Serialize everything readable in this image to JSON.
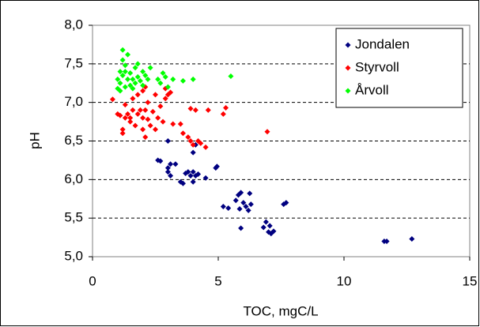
{
  "chart_data": {
    "type": "scatter",
    "xlabel": "TOC, mgC/L",
    "ylabel": "pH",
    "xlim": [
      0,
      15
    ],
    "ylim": [
      5,
      8
    ],
    "xticks": [
      0,
      5,
      10,
      15
    ],
    "yticks": [
      {
        "value": 5,
        "label": "5,0"
      },
      {
        "value": 5.5,
        "label": "5,5"
      },
      {
        "value": 6,
        "label": "6,0"
      },
      {
        "value": 6.5,
        "label": "6,5"
      },
      {
        "value": 7,
        "label": "7,0"
      },
      {
        "value": 7.5,
        "label": "7,5"
      },
      {
        "value": 8,
        "label": "8,0"
      }
    ],
    "grid": true,
    "legend": "upper right",
    "series": [
      {
        "name": "Jondalen",
        "color": "#000080",
        "x": [
          3.0,
          2.6,
          2.7,
          3.1,
          3.0,
          3.0,
          3.1,
          3.5,
          3.6,
          3.7,
          3.8,
          3.9,
          4.0,
          4.1,
          4.0,
          4.2,
          4.5,
          4.9,
          4.95,
          3.3,
          4.0,
          4.1,
          5.2,
          5.4,
          5.7,
          5.8,
          5.9,
          5.85,
          6.0,
          6.1,
          6.2,
          6.25,
          6.3,
          5.9,
          6.8,
          6.9,
          7.0,
          7.05,
          7.1,
          7.2,
          7.6,
          7.7,
          11.6,
          11.7,
          12.7
        ],
        "values": [
          6.5,
          6.25,
          6.24,
          6.2,
          6.15,
          6.1,
          6.05,
          5.97,
          5.95,
          6.08,
          6.1,
          6.05,
          6.1,
          6.05,
          5.97,
          6.07,
          6.02,
          6.15,
          6.17,
          6.2,
          6.35,
          6.45,
          5.65,
          5.63,
          5.73,
          5.8,
          5.83,
          5.62,
          5.7,
          5.65,
          5.6,
          5.82,
          5.68,
          5.37,
          5.38,
          5.45,
          5.32,
          5.4,
          5.3,
          5.33,
          5.68,
          5.7,
          5.2,
          5.2,
          5.23
        ]
      },
      {
        "name": "Styrvoll",
        "color": "#ff0000",
        "x": [
          1.0,
          1.1,
          1.2,
          1.2,
          1.3,
          1.4,
          1.5,
          1.5,
          1.6,
          1.7,
          1.8,
          1.9,
          2.0,
          2.0,
          2.1,
          2.1,
          2.2,
          2.2,
          2.3,
          2.4,
          2.5,
          2.6,
          2.7,
          2.8,
          2.9,
          1.8,
          2.0,
          2.1,
          1.6,
          2.5,
          3.0,
          2.9,
          3.1,
          0.8,
          1.3,
          3.2,
          3.5,
          3.6,
          3.8,
          3.9,
          4.0,
          4.2,
          4.3,
          4.5,
          3.9,
          4.1,
          4.6,
          5.2,
          5.3,
          6.95
        ],
        "values": [
          6.85,
          6.83,
          6.6,
          6.65,
          6.8,
          6.85,
          6.75,
          6.8,
          6.9,
          6.7,
          6.85,
          6.9,
          6.8,
          6.65,
          6.55,
          6.9,
          7.0,
          6.78,
          6.7,
          6.88,
          6.65,
          6.8,
          6.95,
          6.75,
          7.05,
          7.1,
          7.15,
          7.2,
          7.05,
          7.1,
          7.1,
          7.18,
          7.13,
          7.04,
          6.97,
          6.72,
          6.72,
          6.6,
          6.55,
          6.5,
          6.45,
          6.5,
          6.47,
          6.42,
          6.92,
          6.9,
          6.9,
          6.85,
          6.93,
          6.62
        ]
      },
      {
        "name": "Årvoll",
        "color": "#00ff00",
        "x": [
          1.0,
          1.1,
          1.1,
          1.2,
          1.2,
          1.2,
          1.3,
          1.3,
          1.4,
          1.4,
          1.5,
          1.5,
          1.6,
          1.7,
          1.7,
          1.8,
          1.8,
          1.9,
          2.0,
          2.0,
          2.1,
          2.2,
          2.3,
          1.0,
          1.1,
          2.6,
          2.7,
          2.8,
          2.9,
          3.0,
          3.2,
          3.6,
          4.0,
          5.5,
          1.3,
          1.6
        ],
        "values": [
          7.3,
          7.4,
          7.25,
          7.35,
          7.55,
          7.68,
          7.48,
          7.2,
          7.3,
          7.62,
          7.38,
          7.22,
          7.3,
          7.45,
          7.25,
          7.33,
          7.5,
          7.28,
          7.4,
          7.22,
          7.35,
          7.3,
          7.45,
          7.18,
          7.15,
          7.3,
          7.25,
          7.38,
          7.33,
          7.2,
          7.3,
          7.28,
          7.3,
          7.34,
          7.4,
          7.18
        ]
      }
    ]
  }
}
